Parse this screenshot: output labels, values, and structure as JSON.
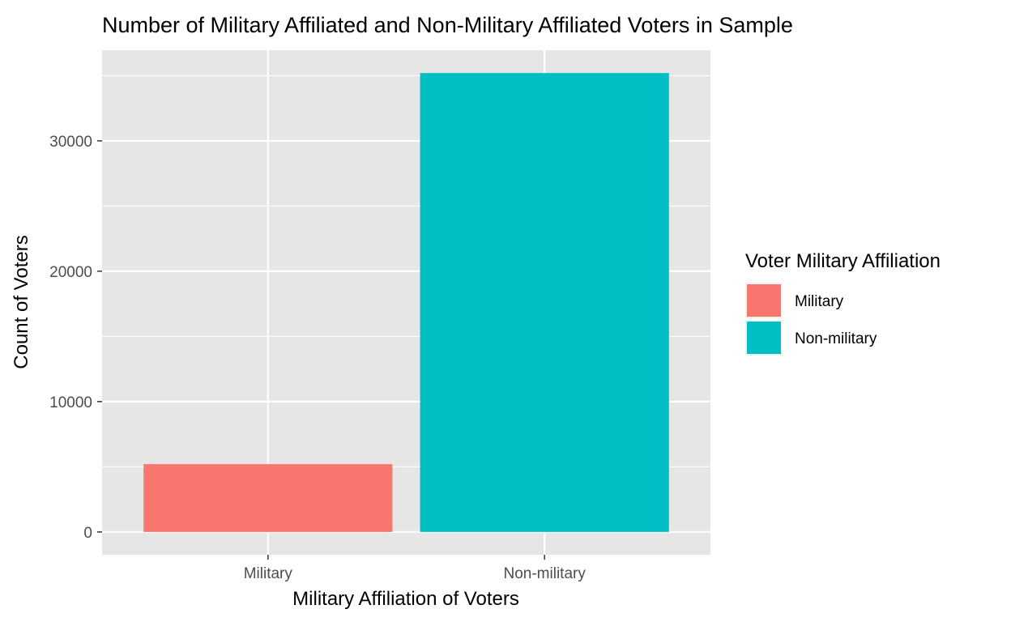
{
  "chart_data": {
    "type": "bar",
    "title": "Number of Military Affiliated and Non-Military Affiliated Voters in Sample",
    "xlabel": "Military Affiliation of Voters",
    "ylabel": "Count of Voters",
    "categories": [
      "Military",
      "Non-military"
    ],
    "values": [
      5200,
      35200
    ],
    "colors": [
      "#F8766D",
      "#00BFC4"
    ],
    "ylim": [
      -1750,
      36950
    ],
    "y_ticks": [
      0,
      10000,
      20000,
      30000
    ],
    "y_tick_labels": [
      "0",
      "10000",
      "20000",
      "30000"
    ],
    "grid": true,
    "panel_background": "#E6E6E6",
    "legend": {
      "title": "Voter Military Affiliation",
      "position": "right",
      "items": [
        {
          "label": "Military",
          "color": "#F8766D"
        },
        {
          "label": "Non-military",
          "color": "#00BFC4"
        }
      ]
    }
  }
}
